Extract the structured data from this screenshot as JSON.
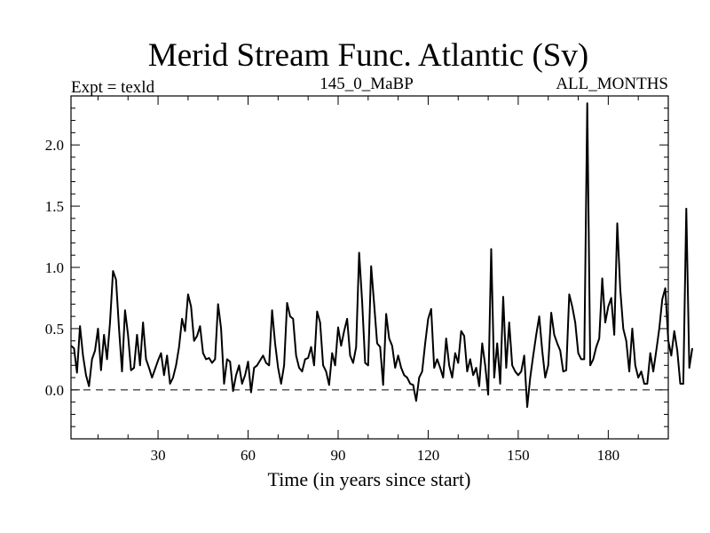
{
  "chart_data": {
    "type": "line",
    "title": "Merid Stream Func. Atlantic (Sv)",
    "subtitle_left": "Expt = texld",
    "subtitle_center": "145_0_MaBP",
    "subtitle_right": "ALL_MONTHS",
    "xlabel": "Time (in years since start)",
    "ylabel": "",
    "xlim": [
      1,
      200
    ],
    "ylim": [
      -0.4,
      2.4
    ],
    "xticks": [
      30,
      60,
      90,
      120,
      150,
      180
    ],
    "xtick_labels": [
      "30",
      "60",
      "90",
      "120",
      "150",
      "180"
    ],
    "yticks": [
      0.0,
      0.5,
      1.0,
      1.5,
      2.0
    ],
    "ytick_labels": [
      "0.0",
      "0.5",
      "1.0",
      "1.5",
      "2.0"
    ],
    "reference_line": {
      "y": 0.0,
      "style": "dashed"
    },
    "series": [
      {
        "name": "texld",
        "x_start": 1,
        "x_step": 1,
        "values": [
          0.36,
          0.34,
          0.14,
          0.52,
          0.28,
          0.12,
          0.03,
          0.25,
          0.32,
          0.5,
          0.16,
          0.45,
          0.25,
          0.55,
          0.97,
          0.9,
          0.5,
          0.15,
          0.65,
          0.45,
          0.16,
          0.18,
          0.45,
          0.2,
          0.55,
          0.25,
          0.18,
          0.1,
          0.17,
          0.24,
          0.3,
          0.12,
          0.28,
          0.05,
          0.1,
          0.2,
          0.35,
          0.58,
          0.48,
          0.78,
          0.68,
          0.4,
          0.44,
          0.52,
          0.3,
          0.25,
          0.26,
          0.22,
          0.25,
          0.7,
          0.5,
          0.05,
          0.25,
          0.23,
          -0.01,
          0.12,
          0.2,
          0.05,
          0.12,
          0.23,
          -0.02,
          0.18,
          0.2,
          0.24,
          0.28,
          0.22,
          0.2,
          0.65,
          0.38,
          0.18,
          0.05,
          0.2,
          0.71,
          0.6,
          0.58,
          0.28,
          0.18,
          0.15,
          0.25,
          0.26,
          0.35,
          0.2,
          0.64,
          0.55,
          0.2,
          0.15,
          0.04,
          0.3,
          0.2,
          0.51,
          0.36,
          0.48,
          0.58,
          0.28,
          0.22,
          0.35,
          1.12,
          0.72,
          0.22,
          0.2,
          1.01,
          0.7,
          0.38,
          0.35,
          0.04,
          0.62,
          0.42,
          0.36,
          0.18,
          0.28,
          0.18,
          0.12,
          0.1,
          0.05,
          0.04,
          -0.09,
          0.1,
          0.15,
          0.38,
          0.58,
          0.66,
          0.18,
          0.25,
          0.18,
          0.1,
          0.42,
          0.2,
          0.1,
          0.3,
          0.22,
          0.48,
          0.44,
          0.15,
          0.25,
          0.12,
          0.18,
          0.03,
          0.38,
          0.2,
          -0.04,
          1.15,
          0.1,
          0.38,
          0.05,
          0.76,
          0.18,
          0.55,
          0.2,
          0.15,
          0.12,
          0.15,
          0.28,
          -0.14,
          0.1,
          0.28,
          0.45,
          0.6,
          0.32,
          0.1,
          0.2,
          0.63,
          0.45,
          0.38,
          0.32,
          0.15,
          0.16,
          0.78,
          0.68,
          0.55,
          0.3,
          0.25,
          0.25,
          2.34,
          0.2,
          0.25,
          0.35,
          0.42,
          0.91,
          0.55,
          0.68,
          0.75,
          0.45,
          1.36,
          0.82,
          0.5,
          0.4,
          0.15,
          0.5,
          0.2,
          0.1,
          0.15,
          0.05,
          0.05,
          0.3,
          0.15,
          0.32,
          0.5,
          0.74,
          0.83,
          0.4,
          0.28,
          0.48,
          0.32,
          0.05,
          0.05,
          1.48,
          0.18,
          0.34
        ]
      }
    ]
  }
}
